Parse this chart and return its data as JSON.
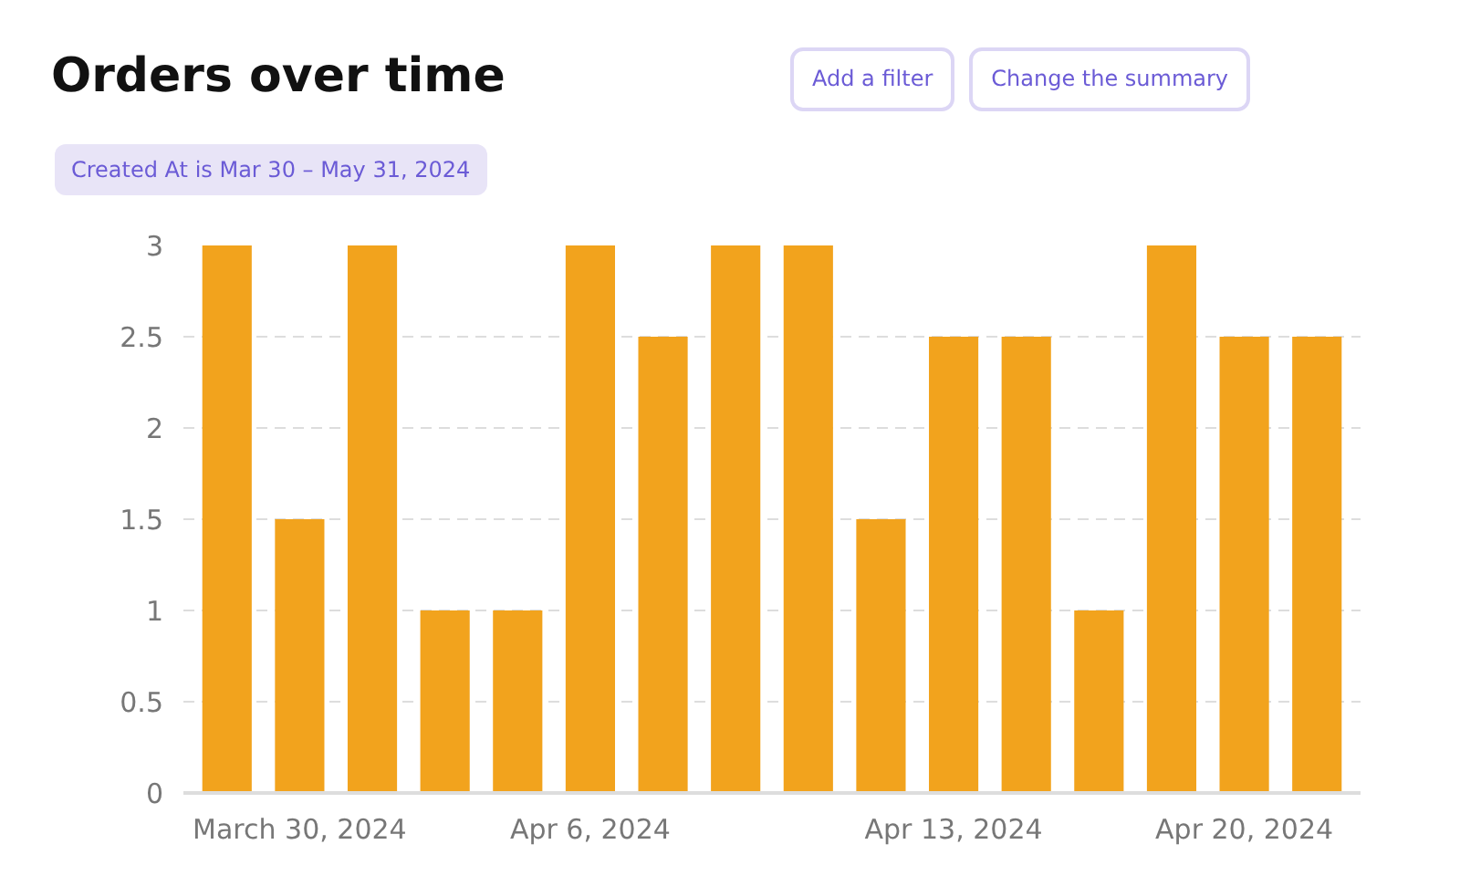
{
  "chart_data": {
    "type": "bar",
    "title": "Orders over time",
    "subtitle": "Created At is Mar 30 – May 31, 2024",
    "annotations": [
      "Add a filter",
      "Change the summary"
    ],
    "categories": [
      null,
      "March 30, 2024",
      null,
      null,
      null,
      "Apr 6, 2024",
      null,
      null,
      null,
      null,
      "Apr 13, 2024",
      null,
      null,
      null,
      "Apr 20, 2024",
      null
    ],
    "values": [
      3,
      1.5,
      3,
      1,
      1,
      3,
      2.5,
      3,
      3,
      1.5,
      2.5,
      2.5,
      1,
      3,
      2.5,
      2.5
    ],
    "color": "#f2a31d",
    "ylim": [
      0,
      3
    ],
    "yticks": [
      0,
      0.5,
      1,
      1.5,
      2,
      2.5,
      3
    ],
    "grid": "y"
  }
}
